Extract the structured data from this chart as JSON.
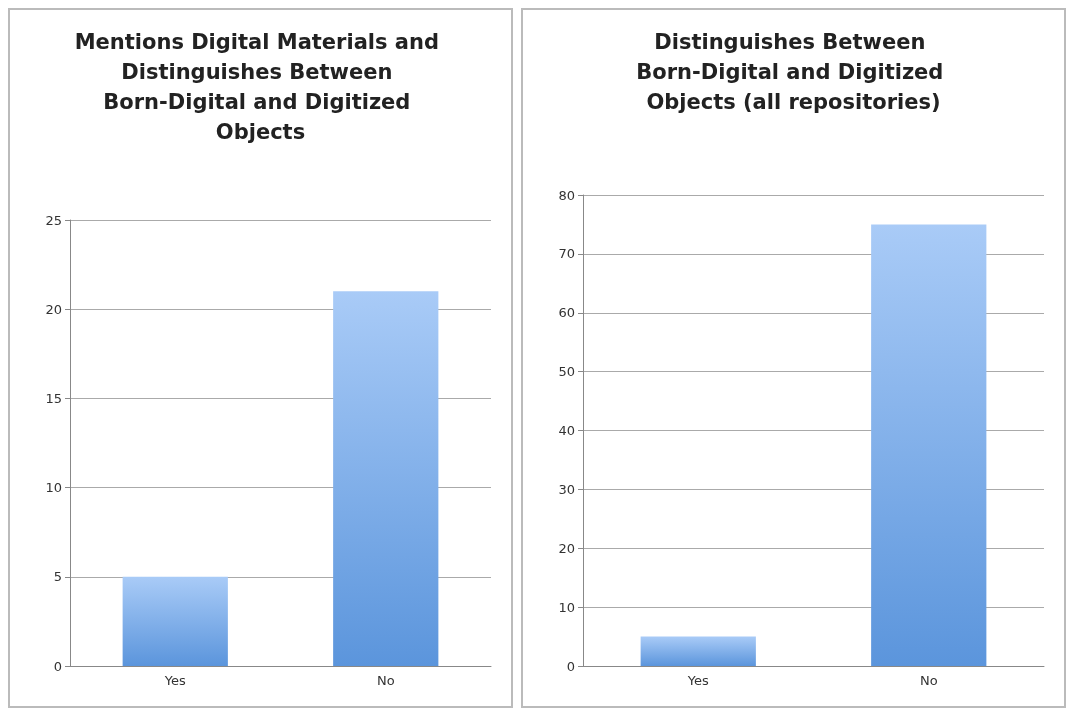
{
  "chart_data": [
    {
      "type": "bar",
      "title": "Mentions Digital Materials and Distinguishes Between Born-Digital and Digitized Objects",
      "categories": [
        "Yes",
        "No"
      ],
      "values": [
        5,
        21
      ],
      "color": "#5b95dc",
      "ylim": [
        0,
        25
      ],
      "yticks": [
        0,
        5,
        10,
        15,
        20,
        25
      ],
      "grid": "y"
    },
    {
      "type": "bar",
      "title": "Distinguishes Between Born-Digital and Digitized Objects (all repositories)",
      "categories": [
        "Yes",
        "No"
      ],
      "values": [
        5,
        75
      ],
      "color": "#5b95dc",
      "ylim": [
        0,
        80
      ],
      "yticks": [
        0,
        10,
        20,
        30,
        40,
        50,
        60,
        70,
        80
      ],
      "grid": "y"
    }
  ]
}
